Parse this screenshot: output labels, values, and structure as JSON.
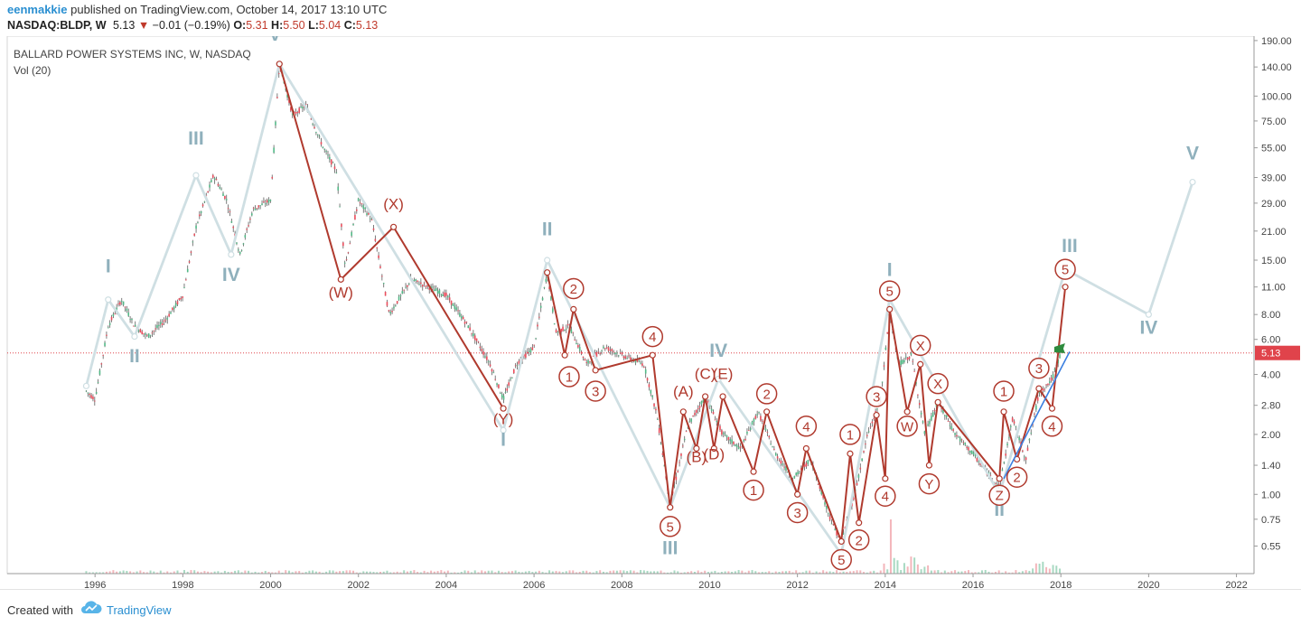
{
  "header": {
    "author": "eenmakkie",
    "published_text": "published on TradingView.com, October 14, 2017 13:10 UTC",
    "symbol": "NASDAQ:BLDP, W",
    "last": "5.13",
    "change": "−0.01 (−0.19%)",
    "o_label": "O:",
    "o": "5.31",
    "h_label": "H:",
    "h": "5.50",
    "l_label": "L:",
    "l": "5.04",
    "c_label": "C:",
    "c": "5.13"
  },
  "legend": {
    "title": "BALLARD POWER SYSTEMS INC, W, NASDAQ",
    "volume": "Vol (20)"
  },
  "footer": {
    "created_with": "Created with",
    "brand": "TradingView"
  },
  "colors": {
    "candle": "#5c5c5c",
    "red_wave": "#b03a2e",
    "grey_wave": "#cfdfe3",
    "grey_label": "#8fb0bc",
    "trendline": "#3b7fe0",
    "flag": "#2e8b3e",
    "price_tag": "#e0434b",
    "author": "#2a8fd1"
  },
  "chart_data": {
    "type": "line",
    "scale": "log",
    "ylim": [
      0.4,
      200
    ],
    "y_ticks": [
      190,
      140,
      100,
      75,
      55,
      39,
      29,
      21,
      15,
      11,
      8,
      6,
      4,
      2.8,
      2,
      1.4,
      1,
      0.75,
      0.55
    ],
    "y_tick_labels": [
      "190.00",
      "140.00",
      "100.00",
      "75.00",
      "55.00",
      "39.00",
      "29.00",
      "21.00",
      "15.00",
      "11.00",
      "8.00",
      "6.00",
      "4.00",
      "2.80",
      "2.00",
      "1.40",
      "1.00",
      "0.75",
      "0.55"
    ],
    "xlim": [
      1994,
      2022.4
    ],
    "x_ticks": [
      1996,
      1998,
      2000,
      2002,
      2004,
      2006,
      2008,
      2010,
      2012,
      2014,
      2016,
      2018,
      2020,
      2022
    ],
    "x_tick_labels": [
      "1996",
      "1998",
      "2000",
      "2002",
      "2004",
      "2006",
      "2008",
      "2010",
      "2012",
      "2014",
      "2016",
      "2018",
      "2020",
      "2022"
    ],
    "last_price": 5.13,
    "last_price_label": "5.13",
    "price": [
      [
        1995.8,
        3.3
      ],
      [
        1996.0,
        3.0
      ],
      [
        1996.3,
        7.0
      ],
      [
        1996.6,
        9.5
      ],
      [
        1996.9,
        7.0
      ],
      [
        1997.2,
        6.2
      ],
      [
        1997.6,
        7.5
      ],
      [
        1998.0,
        10.0
      ],
      [
        1998.3,
        22.0
      ],
      [
        1998.7,
        40.0
      ],
      [
        1999.0,
        30.0
      ],
      [
        1999.3,
        16.0
      ],
      [
        1999.6,
        27.0
      ],
      [
        2000.0,
        30.0
      ],
      [
        2000.2,
        145.0
      ],
      [
        2000.5,
        80.0
      ],
      [
        2000.8,
        90.0
      ],
      [
        2001.2,
        55.0
      ],
      [
        2001.5,
        42.0
      ],
      [
        2001.7,
        14.0
      ],
      [
        2002.0,
        30.0
      ],
      [
        2002.3,
        24.0
      ],
      [
        2002.7,
        8.0
      ],
      [
        2003.2,
        12.0
      ],
      [
        2003.6,
        11.0
      ],
      [
        2004.0,
        10.0
      ],
      [
        2004.5,
        7.0
      ],
      [
        2005.0,
        4.5
      ],
      [
        2005.3,
        3.0
      ],
      [
        2005.6,
        4.5
      ],
      [
        2006.0,
        5.5
      ],
      [
        2006.3,
        13.0
      ],
      [
        2006.5,
        6.5
      ],
      [
        2006.8,
        7.0
      ],
      [
        2007.2,
        4.5
      ],
      [
        2007.6,
        5.5
      ],
      [
        2008.0,
        5.0
      ],
      [
        2008.5,
        4.5
      ],
      [
        2008.8,
        2.5
      ],
      [
        2009.1,
        0.88
      ],
      [
        2009.5,
        2.2
      ],
      [
        2009.9,
        3.1
      ],
      [
        2010.3,
        2.0
      ],
      [
        2010.7,
        1.7
      ],
      [
        2011.1,
        2.6
      ],
      [
        2011.5,
        1.6
      ],
      [
        2011.9,
        1.2
      ],
      [
        2012.3,
        1.5
      ],
      [
        2012.8,
        0.7
      ],
      [
        2013.0,
        0.58
      ],
      [
        2013.3,
        1.0
      ],
      [
        2013.6,
        2.0
      ],
      [
        2013.9,
        3.0
      ],
      [
        2014.1,
        8.5
      ],
      [
        2014.3,
        4.5
      ],
      [
        2014.6,
        5.0
      ],
      [
        2014.9,
        2.0
      ],
      [
        2015.2,
        2.9
      ],
      [
        2015.6,
        2.0
      ],
      [
        2016.0,
        1.6
      ],
      [
        2016.3,
        1.3
      ],
      [
        2016.6,
        1.1
      ],
      [
        2016.9,
        2.4
      ],
      [
        2017.2,
        1.5
      ],
      [
        2017.5,
        3.2
      ],
      [
        2017.8,
        3.8
      ],
      [
        2018.0,
        5.13
      ]
    ],
    "series": [
      {
        "name": "",
        "points": [
          [
            1995.8,
            3.5
          ],
          [
            1996.3,
            9.5
          ],
          [
            1996.9,
            6.2
          ],
          [
            1998.3,
            40.0
          ],
          [
            1999.1,
            16.0
          ],
          [
            2000.2,
            145.0
          ],
          [
            2005.3,
            2.1
          ],
          [
            2006.3,
            15.0
          ],
          [
            2009.1,
            0.86
          ],
          [
            2010.2,
            3.8
          ],
          [
            2013.0,
            0.5
          ],
          [
            2014.1,
            9.5
          ],
          [
            2016.6,
            1.0
          ],
          [
            2018.1,
            13.5
          ],
          [
            2020.0,
            8.0
          ],
          [
            2021.0,
            37.0
          ]
        ]
      },
      {
        "name": "",
        "points": [
          [
            2000.2,
            145.0
          ],
          [
            2001.6,
            12.0
          ],
          [
            2002.8,
            22.0
          ],
          [
            2005.3,
            2.7
          ]
        ]
      },
      {
        "name": "",
        "points": [
          [
            2006.3,
            13.0
          ],
          [
            2006.7,
            5.0
          ],
          [
            2006.9,
            8.5
          ],
          [
            2007.4,
            4.2
          ],
          [
            2008.7,
            5.0
          ],
          [
            2009.1,
            0.86
          ],
          [
            2009.4,
            2.6
          ],
          [
            2009.7,
            1.7
          ],
          [
            2009.9,
            3.1
          ],
          [
            2010.1,
            1.7
          ],
          [
            2010.3,
            3.1
          ],
          [
            2011.0,
            1.3
          ],
          [
            2011.3,
            2.6
          ],
          [
            2012.0,
            1.0
          ],
          [
            2012.2,
            1.7
          ],
          [
            2013.0,
            0.58
          ],
          [
            2013.2,
            1.6
          ],
          [
            2013.4,
            0.72
          ],
          [
            2013.8,
            2.5
          ],
          [
            2014.0,
            1.2
          ],
          [
            2014.1,
            8.5
          ],
          [
            2014.5,
            2.6
          ],
          [
            2014.8,
            4.5
          ],
          [
            2015.0,
            1.4
          ],
          [
            2015.2,
            2.9
          ],
          [
            2016.6,
            1.2
          ],
          [
            2016.7,
            2.6
          ],
          [
            2017.0,
            1.5
          ],
          [
            2017.5,
            3.4
          ],
          [
            2017.8,
            2.7
          ],
          [
            2018.1,
            11.0
          ]
        ]
      }
    ],
    "trendline": [
      [
        2016.7,
        1.2
      ],
      [
        2018.2,
        5.2
      ]
    ],
    "labels_grey": [
      {
        "text": "I",
        "x": 1996.3,
        "y": 13.0
      },
      {
        "text": "II",
        "x": 1996.9,
        "y": 4.6
      },
      {
        "text": "III",
        "x": 1998.3,
        "y": 57.0
      },
      {
        "text": "IV",
        "x": 1999.1,
        "y": 11.8
      },
      {
        "text": "V",
        "x": 2000.1,
        "y": 190.0
      },
      {
        "text": "I",
        "x": 2005.3,
        "y": 1.75
      },
      {
        "text": "II",
        "x": 2006.3,
        "y": 20.0
      },
      {
        "text": "III",
        "x": 2009.1,
        "y": 0.5
      },
      {
        "text": "IV",
        "x": 2010.2,
        "y": 4.9
      },
      {
        "text": "I",
        "x": 2014.1,
        "y": 12.5
      },
      {
        "text": "II",
        "x": 2016.6,
        "y": 0.78
      },
      {
        "text": "III",
        "x": 2018.2,
        "y": 16.5
      },
      {
        "text": "IV",
        "x": 2020.0,
        "y": 6.4
      },
      {
        "text": "V",
        "x": 2021.0,
        "y": 48.0
      }
    ],
    "labels_red": [
      {
        "text": "(W)",
        "x": 2001.6,
        "y": 9.7
      },
      {
        "text": "(X)",
        "x": 2002.8,
        "y": 27.0
      },
      {
        "text": "(Y)",
        "x": 2005.3,
        "y": 2.25
      },
      {
        "text": "(A)",
        "x": 2009.4,
        "y": 3.1
      },
      {
        "text": "(B)",
        "x": 2009.7,
        "y": 1.45
      },
      {
        "text": "(C)",
        "x": 2009.9,
        "y": 3.8
      },
      {
        "text": "(D)",
        "x": 2010.1,
        "y": 1.5
      },
      {
        "text": "(E)",
        "x": 2010.3,
        "y": 3.8
      }
    ],
    "labels_circled": [
      {
        "text": "2",
        "x": 2006.9,
        "y": 10.8
      },
      {
        "text": "1",
        "x": 2006.8,
        "y": 3.9
      },
      {
        "text": "3",
        "x": 2007.4,
        "y": 3.3
      },
      {
        "text": "4",
        "x": 2008.7,
        "y": 6.2
      },
      {
        "text": "5",
        "x": 2009.1,
        "y": 0.69
      },
      {
        "text": "1",
        "x": 2011.0,
        "y": 1.05
      },
      {
        "text": "2",
        "x": 2011.3,
        "y": 3.2
      },
      {
        "text": "3",
        "x": 2012.0,
        "y": 0.81
      },
      {
        "text": "4",
        "x": 2012.2,
        "y": 2.2
      },
      {
        "text": "5",
        "x": 2013.0,
        "y": 0.47
      },
      {
        "text": "1",
        "x": 2013.2,
        "y": 2.0
      },
      {
        "text": "2",
        "x": 2013.4,
        "y": 0.59
      },
      {
        "text": "3",
        "x": 2013.8,
        "y": 3.1
      },
      {
        "text": "4",
        "x": 2014.0,
        "y": 0.98
      },
      {
        "text": "5",
        "x": 2014.1,
        "y": 10.5
      },
      {
        "text": "W",
        "x": 2014.5,
        "y": 2.2
      },
      {
        "text": "X",
        "x": 2014.8,
        "y": 5.6
      },
      {
        "text": "Y",
        "x": 2015.0,
        "y": 1.13
      },
      {
        "text": "X",
        "x": 2015.2,
        "y": 3.6
      },
      {
        "text": "Z",
        "x": 2016.6,
        "y": 0.99
      },
      {
        "text": "1",
        "x": 2016.7,
        "y": 3.3
      },
      {
        "text": "2",
        "x": 2017.0,
        "y": 1.22
      },
      {
        "text": "3",
        "x": 2017.5,
        "y": 4.3
      },
      {
        "text": "4",
        "x": 2017.8,
        "y": 2.2
      },
      {
        "text": "5",
        "x": 2018.1,
        "y": 13.5
      }
    ]
  }
}
